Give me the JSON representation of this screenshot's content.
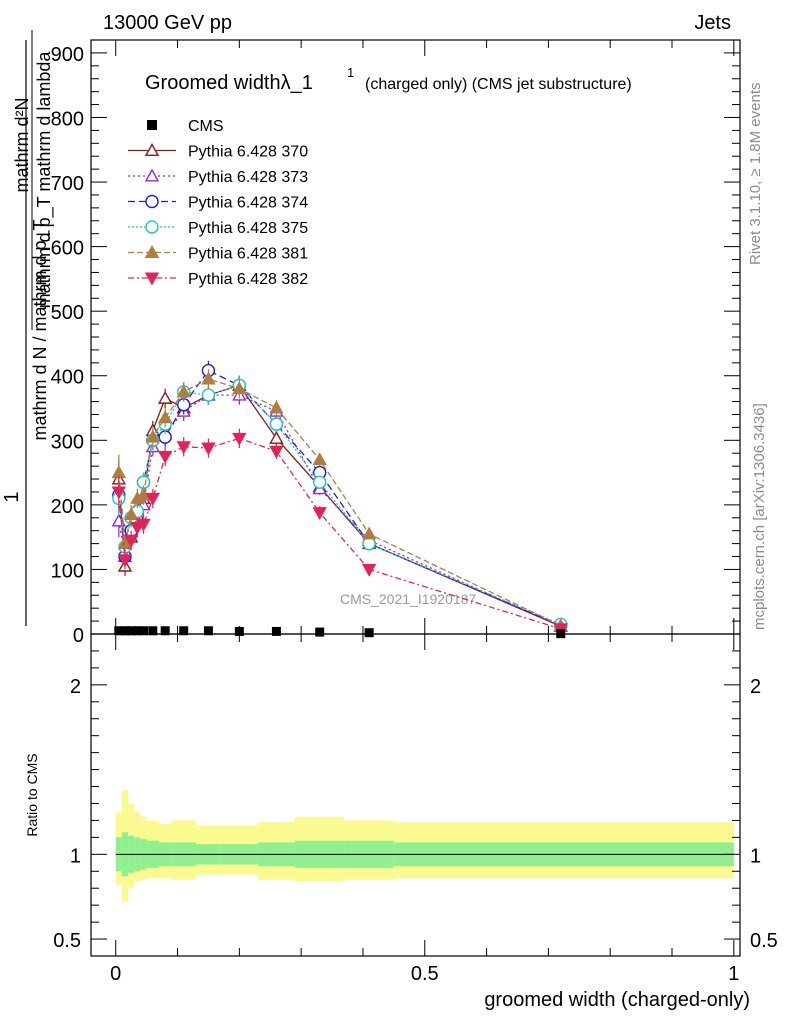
{
  "header": {
    "left": "13000 GeV pp",
    "right": "Jets"
  },
  "side_labels": {
    "rivet": "Rivet 3.1.10, ≥ 1.8M events",
    "mcplots": "mcplots.cern.ch [arXiv:1306.3436]"
  },
  "watermark": "CMS_2021_I1920187",
  "colors": {
    "CMS": "#000000",
    "370": "#8b1a1a",
    "373": "#8a2be2",
    "374": "#1f1fd6",
    "375": "#1ec8c0",
    "381": "#b07c42",
    "382": "#e0245a",
    "band_inner": "#90f090",
    "band_outer": "#fafa90"
  },
  "chart_data": [
    {
      "type": "line",
      "title_main": "Groomed widthλ_1",
      "title_sup": "1",
      "title_rest": "(charged only) (CMS jet substructure)",
      "ylabel_num": "1",
      "ylabel_den": "mathrm d N / mathrm d p_T",
      "ylabel_frac_num": "mathrm d²N",
      "ylabel_frac_den": "mathrm d p_T mathrm d lambda",
      "xlim": [
        -0.04,
        1.01
      ],
      "ylim": [
        0,
        920
      ],
      "yticks": [
        0,
        100,
        200,
        300,
        400,
        500,
        600,
        700,
        800,
        900
      ],
      "ytick_labels": [
        "0",
        "100",
        "200",
        "300",
        "400",
        "500",
        "600",
        "700",
        "800",
        "900"
      ],
      "legend_position": "top-left",
      "cms_x": [
        0.005,
        0.015,
        0.025,
        0.035,
        0.045,
        0.06,
        0.08,
        0.11,
        0.15,
        0.2,
        0.26,
        0.33,
        0.41,
        0.72
      ],
      "cms_y": [
        5,
        5,
        5,
        5,
        5,
        5,
        5,
        5,
        5,
        4,
        4,
        3,
        2,
        0.5
      ],
      "x": [
        0.005,
        0.015,
        0.025,
        0.035,
        0.045,
        0.06,
        0.08,
        0.11,
        0.15,
        0.2,
        0.26,
        0.33,
        0.41,
        0.72
      ],
      "series": [
        {
          "name": "Pythia 6.428 370",
          "key": "370",
          "marker": "tri-open",
          "dash": "",
          "values": [
            240,
            105,
            150,
            185,
            210,
            315,
            365,
            350,
            370,
            385,
            303,
            228,
            140,
            12
          ],
          "err": [
            30,
            15,
            15,
            15,
            15,
            15,
            15,
            15,
            15,
            15,
            12,
            10,
            8,
            3
          ]
        },
        {
          "name": "Pythia 6.428 373",
          "key": "373",
          "marker": "tri-open",
          "dash": "2,3",
          "values": [
            175,
            120,
            160,
            175,
            200,
            290,
            310,
            345,
            370,
            370,
            345,
            225,
            145,
            12
          ],
          "err": [
            25,
            15,
            15,
            15,
            15,
            15,
            15,
            15,
            15,
            15,
            12,
            10,
            8,
            3
          ]
        },
        {
          "name": "Pythia 6.428 374",
          "key": "374",
          "marker": "circle-open",
          "dash": "7,4",
          "values": [
            215,
            120,
            160,
            190,
            235,
            300,
            305,
            355,
            408,
            385,
            325,
            250,
            140,
            13
          ],
          "err": [
            25,
            15,
            15,
            15,
            15,
            15,
            15,
            15,
            15,
            15,
            12,
            10,
            8,
            3
          ]
        },
        {
          "name": "Pythia 6.428 375",
          "key": "375",
          "marker": "circle-open",
          "dash": "2,2",
          "values": [
            210,
            135,
            180,
            190,
            235,
            300,
            325,
            375,
            370,
            385,
            325,
            235,
            140,
            15
          ],
          "err": [
            25,
            15,
            15,
            15,
            15,
            15,
            15,
            15,
            15,
            15,
            12,
            10,
            8,
            3
          ]
        },
        {
          "name": "Pythia 6.428 381",
          "key": "381",
          "marker": "tri-filled",
          "dash": "6,3",
          "values": [
            250,
            140,
            185,
            210,
            215,
            305,
            335,
            375,
            395,
            380,
            350,
            270,
            155,
            13
          ],
          "err": [
            28,
            15,
            15,
            15,
            15,
            15,
            15,
            15,
            15,
            15,
            12,
            10,
            8,
            3
          ]
        },
        {
          "name": "Pythia 6.428 382",
          "key": "382",
          "marker": "tri-down-filled",
          "dash": "6,3,2,3",
          "values": [
            220,
            115,
            145,
            165,
            170,
            210,
            275,
            290,
            288,
            303,
            283,
            188,
            100,
            8
          ],
          "err": [
            25,
            15,
            15,
            15,
            15,
            15,
            15,
            15,
            15,
            15,
            12,
            10,
            8,
            3
          ]
        }
      ],
      "legend": [
        {
          "label": "CMS",
          "key": "CMS",
          "marker": "square",
          "dash": "none"
        },
        {
          "label": "Pythia 6.428 370",
          "key": "370",
          "marker": "tri-open",
          "dash": ""
        },
        {
          "label": "Pythia 6.428 373",
          "key": "373",
          "marker": "tri-open",
          "dash": "2,3"
        },
        {
          "label": "Pythia 6.428 374",
          "key": "374",
          "marker": "circle-open",
          "dash": "7,4"
        },
        {
          "label": "Pythia 6.428 375",
          "key": "375",
          "marker": "circle-open",
          "dash": "2,2"
        },
        {
          "label": "Pythia 6.428 381",
          "key": "381",
          "marker": "tri-filled",
          "dash": "6,3"
        },
        {
          "label": "Pythia 6.428 382",
          "key": "382",
          "marker": "tri-down-filled",
          "dash": "6,3,2,3"
        }
      ]
    },
    {
      "type": "area",
      "ylabel": "Ratio to CMS",
      "xlabel": "groomed width (charged-only)",
      "xlim": [
        -0.04,
        1.01
      ],
      "ylim": [
        0.4,
        2.3
      ],
      "yticks": [
        0.5,
        1,
        2
      ],
      "ytick_labels": [
        "0.5",
        "1",
        "2"
      ],
      "xticks": [
        0,
        0.5,
        1
      ],
      "xtick_labels": [
        "0",
        "0.5",
        "1"
      ],
      "bins": [
        0,
        0.01,
        0.02,
        0.03,
        0.04,
        0.05,
        0.07,
        0.09,
        0.13,
        0.17,
        0.23,
        0.29,
        0.37,
        0.45,
        1.0
      ],
      "inner_lo": [
        0.9,
        0.87,
        0.89,
        0.9,
        0.91,
        0.92,
        0.93,
        0.93,
        0.94,
        0.94,
        0.93,
        0.92,
        0.92,
        0.93
      ],
      "inner_hi": [
        1.1,
        1.13,
        1.11,
        1.1,
        1.09,
        1.08,
        1.07,
        1.07,
        1.06,
        1.06,
        1.07,
        1.08,
        1.08,
        1.07
      ],
      "outer_lo": [
        0.82,
        0.72,
        0.8,
        0.84,
        0.85,
        0.86,
        0.86,
        0.85,
        0.88,
        0.88,
        0.85,
        0.84,
        0.85,
        0.86
      ],
      "outer_hi": [
        1.25,
        1.38,
        1.3,
        1.25,
        1.22,
        1.2,
        1.18,
        1.2,
        1.17,
        1.17,
        1.19,
        1.22,
        1.2,
        1.19
      ]
    }
  ]
}
